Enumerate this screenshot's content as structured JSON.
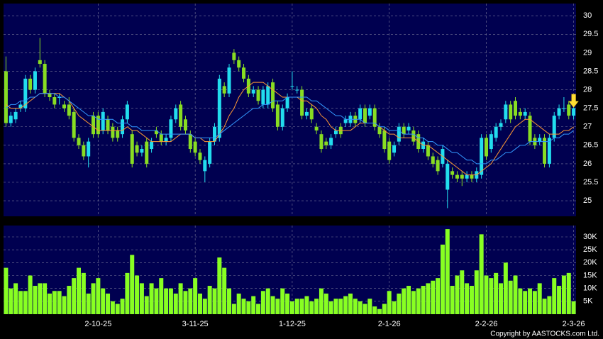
{
  "chart_data": [
    {
      "type": "candlestick",
      "categories": [
        null,
        null,
        null,
        null,
        null,
        null,
        null,
        null,
        null,
        null,
        null,
        null,
        null,
        null,
        null,
        null,
        null,
        null,
        null,
        "2-10-25",
        null,
        null,
        null,
        null,
        null,
        null,
        null,
        null,
        null,
        null,
        null,
        null,
        null,
        null,
        null,
        null,
        null,
        null,
        null,
        "3-11-25",
        null,
        null,
        null,
        null,
        null,
        null,
        null,
        null,
        null,
        null,
        null,
        null,
        null,
        null,
        null,
        null,
        null,
        null,
        null,
        "1-12-25",
        null,
        null,
        null,
        null,
        null,
        null,
        null,
        null,
        null,
        null,
        null,
        null,
        null,
        null,
        null,
        null,
        null,
        null,
        null,
        "2-1-26",
        null,
        null,
        null,
        null,
        null,
        null,
        null,
        null,
        null,
        null,
        null,
        null,
        null,
        null,
        null,
        null,
        null,
        null,
        null,
        "2-2-26",
        null,
        null,
        null,
        null,
        null,
        null,
        null,
        null,
        null,
        null,
        null,
        null,
        null,
        null,
        null,
        null,
        null,
        "2-3-26"
      ],
      "open": [
        28.5,
        27.1,
        27.2,
        27.5,
        27.5,
        28.3,
        28.0,
        28.8,
        28.7,
        27.9,
        27.8,
        27.8,
        27.6,
        27.6,
        27.4,
        26.7,
        26.5,
        26.2,
        27.3,
        27.3,
        26.9,
        27.2,
        27.0,
        26.9,
        26.8,
        27.2,
        26.8,
        26.5,
        26.3,
        26.6,
        26.4,
        26.9,
        26.8,
        26.6,
        26.7,
        27.2,
        27.6,
        27.2,
        26.8,
        26.6,
        26.3,
        25.8,
        26.0,
        26.6,
        26.7,
        28.1,
        27.9,
        29.0,
        28.8,
        28.6,
        28.3,
        27.9,
        28.0,
        27.6,
        27.6,
        28.2,
        27.6,
        27.0,
        27.5,
        28.1,
        28.0,
        28.0,
        27.3,
        27.5,
        27.0,
        26.8,
        26.6,
        26.5,
        26.8,
        27.0,
        27.1,
        27.1,
        27.3,
        27.2,
        27.5,
        27.3,
        27.5,
        27.0,
        26.9,
        26.6,
        26.3,
        26.6,
        27.0,
        26.9,
        26.9,
        26.8,
        26.4,
        26.5,
        26.2,
        26.1,
        26.0,
        25.3,
        25.8,
        25.7,
        25.7,
        25.6,
        25.7,
        25.6,
        25.7,
        26.7,
        26.4,
        26.7,
        27.0,
        27.2,
        27.6,
        27.7,
        27.4,
        27.3,
        27.3,
        26.7,
        26.6,
        26.7,
        26.0,
        26.7,
        27.3,
        27.5,
        27.6,
        27.3
      ],
      "high": [
        28.9,
        27.4,
        27.5,
        27.7,
        28.4,
        28.4,
        28.6,
        29.4,
        28.8,
        28.0,
        27.9,
        27.9,
        27.7,
        27.8,
        27.5,
        26.8,
        26.6,
        26.7,
        27.4,
        27.4,
        27.5,
        27.3,
        27.1,
        27.0,
        27.3,
        27.7,
        26.9,
        26.6,
        26.5,
        26.7,
        26.7,
        27.0,
        26.9,
        26.8,
        27.3,
        27.6,
        27.7,
        27.3,
        26.9,
        26.7,
        26.4,
        26.2,
        26.7,
        27.1,
        28.4,
        28.2,
        28.7,
        29.1,
        28.9,
        28.7,
        28.4,
        28.1,
        28.1,
        28.1,
        28.2,
        28.3,
        27.7,
        27.6,
        27.9,
        28.5,
        28.1,
        28.1,
        27.5,
        27.6,
        27.1,
        26.9,
        26.7,
        26.8,
        27.0,
        27.1,
        27.3,
        27.4,
        27.4,
        27.6,
        27.6,
        27.6,
        27.6,
        27.1,
        27.0,
        26.7,
        26.6,
        27.1,
        27.1,
        27.1,
        27.0,
        26.9,
        26.7,
        26.6,
        26.3,
        26.2,
        26.5,
        26.1,
        25.9,
        25.8,
        25.8,
        25.8,
        25.8,
        25.9,
        26.8,
        26.8,
        26.9,
        27.1,
        27.2,
        27.7,
        27.7,
        27.8,
        27.5,
        27.5,
        27.4,
        26.8,
        26.8,
        26.8,
        26.8,
        27.4,
        27.6,
        27.8,
        27.7,
        27.6
      ],
      "low": [
        27.0,
        27.0,
        27.1,
        27.4,
        27.4,
        27.9,
        27.9,
        28.6,
        27.8,
        27.7,
        27.5,
        27.6,
        27.4,
        27.2,
        26.6,
        26.4,
        26.1,
        25.9,
        26.7,
        26.7,
        26.8,
        26.8,
        26.6,
        26.6,
        26.7,
        27.1,
        25.9,
        26.2,
        26.2,
        25.9,
        26.3,
        26.7,
        26.5,
        26.5,
        26.6,
        27.1,
        26.9,
        26.8,
        26.3,
        26.2,
        26.0,
        25.5,
        25.9,
        26.5,
        26.6,
        27.8,
        27.8,
        28.7,
        28.5,
        28.2,
        27.8,
        27.8,
        27.6,
        27.5,
        27.5,
        27.4,
        26.9,
        26.9,
        27.4,
        28.0,
        27.9,
        27.2,
        27.2,
        27.1,
        26.8,
        26.3,
        26.4,
        26.4,
        26.7,
        26.7,
        27.0,
        27.0,
        27.0,
        27.1,
        27.0,
        27.2,
        26.9,
        26.7,
        26.3,
        26.0,
        26.2,
        26.5,
        26.7,
        26.8,
        26.5,
        26.3,
        26.3,
        26.1,
        25.9,
        25.7,
        25.9,
        24.8,
        25.6,
        25.5,
        25.4,
        25.5,
        25.5,
        25.5,
        25.6,
        26.1,
        26.3,
        26.6,
        26.9,
        27.1,
        27.1,
        27.2,
        27.2,
        27.2,
        26.5,
        26.4,
        26.5,
        25.9,
        25.9,
        26.6,
        27.2,
        27.4,
        27.2,
        27.2
      ],
      "close": [
        27.1,
        27.3,
        27.4,
        27.6,
        28.3,
        28.0,
        28.5,
        28.7,
        27.9,
        27.8,
        27.6,
        27.8,
        27.5,
        27.3,
        26.7,
        26.5,
        26.2,
        26.6,
        26.8,
        26.8,
        27.4,
        26.9,
        26.7,
        26.7,
        27.2,
        27.6,
        26.0,
        26.3,
        26.4,
        26.0,
        26.6,
        26.8,
        26.6,
        26.7,
        27.2,
        27.5,
        27.0,
        26.9,
        26.4,
        26.3,
        26.1,
        26.1,
        26.6,
        27.0,
        28.3,
        27.9,
        28.6,
        28.8,
        28.6,
        28.3,
        27.9,
        28.0,
        27.7,
        28.0,
        28.1,
        27.5,
        27.0,
        27.5,
        27.8,
        28.1,
        28.0,
        27.3,
        27.4,
        27.2,
        26.9,
        26.4,
        26.5,
        26.7,
        26.9,
        26.8,
        27.2,
        27.3,
        27.1,
        27.5,
        27.1,
        27.5,
        27.0,
        26.8,
        26.4,
        26.1,
        26.5,
        27.0,
        26.8,
        27.0,
        26.6,
        26.4,
        26.6,
        26.2,
        26.0,
        25.8,
        26.4,
        26.0,
        25.7,
        25.6,
        25.6,
        25.7,
        25.6,
        25.8,
        26.7,
        26.2,
        26.8,
        27.0,
        27.1,
        27.6,
        27.2,
        27.3,
        27.3,
        27.4,
        26.6,
        26.5,
        26.7,
        26.0,
        26.7,
        27.3,
        27.5,
        27.5,
        27.3,
        27.5
      ],
      "up_color": "#22ddee",
      "down_color": "#88dd22",
      "series": [
        {
          "color": "#ff9933",
          "values": [
            27.6,
            27.5,
            27.5,
            27.5,
            27.6,
            27.7,
            27.8,
            27.9,
            27.9,
            27.9,
            27.9,
            27.9,
            27.8,
            27.7,
            27.5,
            27.3,
            27.2,
            27.1,
            27.0,
            26.9,
            26.9,
            26.9,
            26.9,
            26.9,
            26.9,
            27.0,
            26.9,
            26.9,
            26.8,
            26.7,
            26.6,
            26.6,
            26.6,
            26.6,
            26.6,
            26.7,
            26.8,
            26.8,
            26.8,
            26.7,
            26.7,
            26.6,
            26.6,
            26.6,
            26.8,
            27.0,
            27.3,
            27.5,
            27.8,
            28.0,
            28.1,
            28.2,
            28.2,
            28.2,
            28.1,
            28.0,
            27.9,
            27.8,
            27.8,
            27.8,
            27.8,
            27.7,
            27.7,
            27.6,
            27.5,
            27.3,
            27.2,
            27.0,
            26.9,
            26.9,
            26.9,
            26.9,
            27.0,
            27.1,
            27.1,
            27.1,
            27.1,
            27.0,
            26.9,
            26.8,
            26.8,
            26.7,
            26.7,
            26.7,
            26.7,
            26.6,
            26.5,
            26.5,
            26.4,
            26.3,
            26.2,
            26.1,
            26.0,
            25.9,
            25.8,
            25.7,
            25.7,
            25.7,
            25.8,
            25.9,
            26.0,
            26.2,
            26.4,
            26.6,
            26.8,
            27.0,
            27.1,
            27.2,
            27.2,
            27.1,
            27.0,
            26.9,
            26.8,
            26.8,
            26.8,
            26.9,
            26.9,
            27.0
          ]
        },
        {
          "color": "#3399ff",
          "values": [
            27.5,
            27.6,
            27.6,
            27.7,
            27.7,
            27.8,
            27.8,
            27.9,
            27.9,
            27.9,
            27.9,
            27.8,
            27.8,
            27.7,
            27.6,
            27.5,
            27.4,
            27.3,
            27.3,
            27.2,
            27.2,
            27.2,
            27.2,
            27.1,
            27.1,
            27.1,
            27.0,
            27.0,
            26.9,
            26.9,
            26.9,
            26.9,
            26.8,
            26.8,
            26.8,
            26.8,
            26.8,
            26.8,
            26.8,
            26.7,
            26.7,
            26.7,
            26.7,
            26.7,
            26.8,
            26.9,
            27.0,
            27.1,
            27.2,
            27.3,
            27.4,
            27.5,
            27.5,
            27.6,
            27.6,
            27.7,
            27.7,
            27.7,
            27.8,
            27.8,
            27.8,
            27.8,
            27.8,
            27.7,
            27.7,
            27.6,
            27.5,
            27.4,
            27.3,
            27.3,
            27.2,
            27.2,
            27.2,
            27.2,
            27.1,
            27.1,
            27.1,
            27.0,
            27.0,
            26.9,
            26.9,
            26.9,
            26.8,
            26.8,
            26.8,
            26.7,
            26.7,
            26.6,
            26.6,
            26.5,
            26.5,
            26.4,
            26.3,
            26.3,
            26.2,
            26.1,
            26.1,
            26.0,
            26.0,
            26.0,
            26.1,
            26.1,
            26.2,
            26.3,
            26.3,
            26.4,
            26.5,
            26.5,
            26.6,
            26.6,
            26.6,
            26.6,
            26.6,
            26.7,
            26.7,
            26.8,
            26.8,
            26.9
          ]
        }
      ],
      "ylim": [
        24.58,
        30.33
      ],
      "yticks": [
        25,
        25.5,
        26,
        26.5,
        27,
        27.5,
        28,
        28.5,
        29,
        29.5,
        30
      ],
      "grid": true
    },
    {
      "type": "bar",
      "color": "#88ff22",
      "values": [
        18000,
        10000,
        12000,
        9000,
        9000,
        15000,
        11000,
        12000,
        12000,
        8000,
        9000,
        9000,
        7000,
        11000,
        14000,
        18000,
        16000,
        8000,
        12000,
        14000,
        10000,
        8000,
        5000,
        4000,
        6000,
        16000,
        23000,
        15000,
        12000,
        7000,
        12000,
        10000,
        14000,
        10000,
        10000,
        8000,
        12000,
        9000,
        10000,
        14000,
        8000,
        6000,
        11000,
        10000,
        22000,
        18000,
        10000,
        4000,
        8000,
        6000,
        5000,
        7000,
        4000,
        9000,
        10000,
        7000,
        6000,
        10000,
        8000,
        5000,
        6000,
        6000,
        7000,
        5000,
        6000,
        10000,
        8000,
        5000,
        6000,
        6000,
        7000,
        8000,
        6000,
        5000,
        4000,
        6000,
        3000,
        2000,
        4000,
        9000,
        5000,
        8000,
        10000,
        11000,
        9000,
        10000,
        11000,
        12000,
        13000,
        14000,
        27000,
        33000,
        11000,
        15000,
        17000,
        12000,
        11000,
        17000,
        31000,
        15000,
        14000,
        16000,
        12000,
        20000,
        13000,
        15000,
        10000,
        9000,
        10000,
        9000,
        12000,
        6000,
        7000,
        14000,
        11000,
        15000,
        16000,
        5000
      ],
      "ylim": [
        0,
        34400
      ],
      "yticks": [
        {
          "value": 5000,
          "label": "5K"
        },
        {
          "value": 10000,
          "label": "10K"
        },
        {
          "value": 15000,
          "label": "15K"
        },
        {
          "value": 20000,
          "label": "20K"
        },
        {
          "value": 25000,
          "label": "25K"
        },
        {
          "value": 30000,
          "label": "30K"
        }
      ],
      "grid": true
    }
  ],
  "copyright": "Copyright by AASTOCKS.com Ltd."
}
